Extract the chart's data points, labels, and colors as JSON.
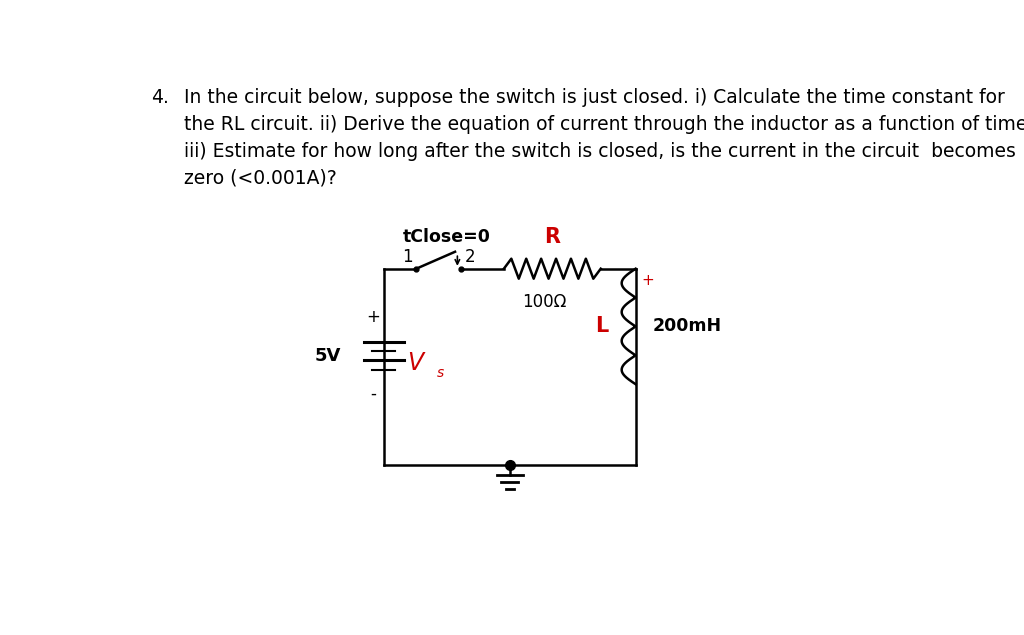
{
  "background_color": "#ffffff",
  "question_number": "4.",
  "question_text_line1": "In the circuit below, suppose the switch is just closed. i) Calculate the time constant for",
  "question_text_line2": "the RL circuit. ii) Derive the equation of current through the inductor as a function of time.",
  "question_text_line3": "iii) Estimate for how long after the switch is closed, is the current in the circuit  becomes",
  "question_text_line4": "zero (<0.001A)?",
  "circuit_label_tclose": "tClose=0",
  "circuit_label_1": "1",
  "circuit_label_2": "2",
  "circuit_label_R": "R",
  "circuit_label_100ohm": "100Ω",
  "circuit_label_5V": "5V",
  "circuit_label_Vs": "V",
  "circuit_label_Vs_sub": "s",
  "circuit_label_L": "L",
  "circuit_label_200mH": "200mH",
  "circuit_label_plus_top": "+",
  "circuit_label_plus_inductor": "+",
  "circuit_label_minus": "-",
  "text_color": "#000000",
  "red_color": "#cc0000",
  "circuit_color": "#000000",
  "font_size_question": 13.5,
  "font_size_circuit": 12,
  "font_size_label": 12
}
